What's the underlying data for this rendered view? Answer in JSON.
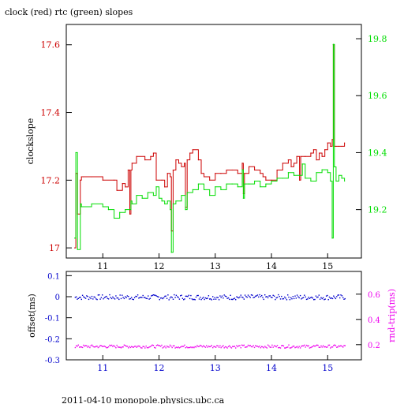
{
  "title": "clock (red) rtc (green) slopes",
  "footer": "2011-04-10 monopole.physics.ubc.ca",
  "colors": {
    "red": "#cc0000",
    "green": "#00dd00",
    "blue": "#0000cc",
    "magenta": "#ee00ee",
    "black": "#000000"
  },
  "chart_data": [
    {
      "type": "line",
      "panel": "top",
      "title": "clock (red) rtc (green) slopes",
      "xlabel": "",
      "ylabel": "clockslope",
      "xlim": [
        10.35,
        15.6
      ],
      "x_ticks": [
        "11",
        "12",
        "13",
        "14",
        "15"
      ],
      "y_left_label": "clockslope",
      "y_left_lim": [
        16.97,
        17.66
      ],
      "y_left_ticks": [
        "17",
        "17.2",
        "17.4",
        "17.6"
      ],
      "y_right_lim": [
        19.03,
        19.85
      ],
      "y_right_ticks": [
        "19.2",
        "19.4",
        "19.6",
        "19.8"
      ],
      "grid": false,
      "series": [
        {
          "name": "clock",
          "axis": "left",
          "color": "#cc0000",
          "x": [
            10.5,
            10.52,
            10.55,
            10.6,
            10.62,
            10.65,
            10.8,
            11.0,
            11.2,
            11.25,
            11.35,
            11.4,
            11.45,
            11.48,
            11.5,
            11.52,
            11.6,
            11.75,
            11.85,
            11.9,
            11.95,
            12.05,
            12.1,
            12.15,
            12.2,
            12.22,
            12.25,
            12.3,
            12.35,
            12.4,
            12.45,
            12.47,
            12.5,
            12.55,
            12.6,
            12.7,
            12.75,
            12.8,
            12.85,
            12.9,
            13.0,
            13.1,
            13.2,
            13.3,
            13.4,
            13.48,
            13.5,
            13.52,
            13.6,
            13.7,
            13.8,
            13.85,
            13.9,
            14.0,
            14.1,
            14.2,
            14.3,
            14.35,
            14.4,
            14.45,
            14.5,
            14.52,
            14.6,
            14.7,
            14.75,
            14.8,
            14.85,
            14.9,
            14.95,
            15.0,
            15.05,
            15.08,
            15.1,
            15.12,
            15.15,
            15.2,
            15.25,
            15.3
          ],
          "y": [
            17.0,
            17.22,
            17.1,
            17.2,
            17.21,
            17.21,
            17.21,
            17.2,
            17.2,
            17.17,
            17.19,
            17.18,
            17.23,
            17.1,
            17.23,
            17.25,
            17.27,
            17.26,
            17.27,
            17.28,
            17.2,
            17.2,
            17.18,
            17.22,
            17.21,
            17.05,
            17.23,
            17.26,
            17.25,
            17.24,
            17.25,
            17.12,
            17.26,
            17.28,
            17.29,
            17.26,
            17.22,
            17.21,
            17.21,
            17.2,
            17.22,
            17.22,
            17.23,
            17.23,
            17.22,
            17.25,
            17.16,
            17.22,
            17.24,
            17.23,
            17.22,
            17.21,
            17.2,
            17.2,
            17.23,
            17.25,
            17.26,
            17.24,
            17.25,
            17.27,
            17.2,
            17.27,
            17.27,
            17.28,
            17.29,
            17.26,
            17.28,
            17.27,
            17.29,
            17.31,
            17.3,
            17.32,
            17.6,
            17.3,
            17.3,
            17.3,
            17.3,
            17.31
          ]
        },
        {
          "name": "rtc",
          "axis": "right",
          "color": "#00dd00",
          "x": [
            10.5,
            10.52,
            10.55,
            10.6,
            10.62,
            10.8,
            11.0,
            11.1,
            11.2,
            11.3,
            11.4,
            11.5,
            11.52,
            11.6,
            11.7,
            11.8,
            11.9,
            11.95,
            12.0,
            12.05,
            12.1,
            12.15,
            12.2,
            12.22,
            12.25,
            12.3,
            12.4,
            12.47,
            12.5,
            12.6,
            12.7,
            12.8,
            12.9,
            13.0,
            13.1,
            13.2,
            13.3,
            13.4,
            13.48,
            13.5,
            13.52,
            13.6,
            13.7,
            13.8,
            13.9,
            14.0,
            14.1,
            14.2,
            14.3,
            14.4,
            14.5,
            14.55,
            14.6,
            14.7,
            14.8,
            14.9,
            15.0,
            15.05,
            15.08,
            15.1,
            15.12,
            15.15,
            15.2,
            15.25,
            15.3
          ],
          "y": [
            19.1,
            19.4,
            19.06,
            19.22,
            19.21,
            19.22,
            19.21,
            19.2,
            19.17,
            19.19,
            19.2,
            19.23,
            19.22,
            19.25,
            19.24,
            19.26,
            19.25,
            19.28,
            19.24,
            19.23,
            19.22,
            19.23,
            19.2,
            19.05,
            19.22,
            19.23,
            19.25,
            19.2,
            19.26,
            19.27,
            19.29,
            19.27,
            19.25,
            19.28,
            19.27,
            19.29,
            19.29,
            19.28,
            19.34,
            19.24,
            19.29,
            19.29,
            19.3,
            19.28,
            19.29,
            19.3,
            19.31,
            19.31,
            19.33,
            19.32,
            19.32,
            19.36,
            19.31,
            19.3,
            19.33,
            19.34,
            19.33,
            19.3,
            19.1,
            19.78,
            19.35,
            19.3,
            19.32,
            19.31,
            19.3
          ]
        }
      ]
    },
    {
      "type": "scatter",
      "panel": "bottom",
      "xlim": [
        10.35,
        15.6
      ],
      "x_ticks": [
        "11",
        "12",
        "13",
        "14",
        "15"
      ],
      "y_left_label": "offset(ms)",
      "y_left_lim": [
        -0.3,
        0.12
      ],
      "y_left_ticks": [
        "-0.3",
        "-0.2",
        "-0.1",
        "0",
        "0.1"
      ],
      "y_right_label": "rnd-trip(ms)",
      "y_right_lim": [
        0.08,
        0.78
      ],
      "y_right_ticks": [
        "0.2",
        "0.4",
        "0.6"
      ],
      "grid": false,
      "series": [
        {
          "name": "offset",
          "axis": "left",
          "color": "#0000cc",
          "x_range": [
            10.5,
            15.3
          ],
          "level": 0.0,
          "spread": 0.012
        },
        {
          "name": "rnd-trip",
          "axis": "right",
          "color": "#ee00ee",
          "x_range": [
            10.5,
            15.3
          ],
          "level": 0.19,
          "spread": 0.012
        }
      ]
    }
  ]
}
